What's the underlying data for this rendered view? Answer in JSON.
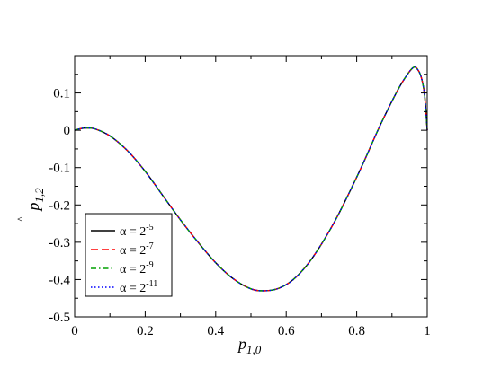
{
  "chart_data": {
    "type": "line",
    "title": "",
    "xlabel": "p",
    "xlabel_sub": "1,0",
    "ylabel": "p",
    "ylabel_sub": "1,2",
    "ylabel_hat": "^",
    "xlim": [
      0,
      1
    ],
    "ylim": [
      -0.5,
      0.2
    ],
    "xticks": [
      0,
      0.2,
      0.4,
      0.6,
      0.8,
      1
    ],
    "xtick_labels": [
      "0",
      "0.2",
      "0.4",
      "0.6",
      "0.8",
      "1"
    ],
    "yticks": [
      -0.5,
      -0.4,
      -0.3,
      -0.2,
      -0.1,
      0,
      0.1
    ],
    "ytick_labels": [
      "-0.5",
      "-0.4",
      "-0.3",
      "-0.2",
      "-0.1",
      "0",
      "0.1"
    ],
    "grid": false,
    "legend_position": "lower-left",
    "x": [
      0,
      0.02,
      0.04,
      0.06,
      0.1,
      0.15,
      0.2,
      0.25,
      0.3,
      0.35,
      0.4,
      0.45,
      0.5,
      0.54,
      0.58,
      0.62,
      0.66,
      0.7,
      0.74,
      0.78,
      0.82,
      0.86,
      0.9,
      0.93,
      0.96,
      0.975,
      0.985,
      0.993,
      1
    ],
    "series": [
      {
        "name": "α = 2",
        "exponent": "-5",
        "color": "#000000",
        "dash": "solid",
        "values": [
          0,
          0.005,
          0.006,
          0.003,
          -0.015,
          -0.055,
          -0.11,
          -0.175,
          -0.24,
          -0.3,
          -0.355,
          -0.398,
          -0.425,
          -0.43,
          -0.423,
          -0.4,
          -0.36,
          -0.305,
          -0.24,
          -0.165,
          -0.085,
          0.0,
          0.078,
          0.13,
          0.168,
          0.16,
          0.135,
          0.09,
          0.0
        ]
      },
      {
        "name": "α = 2",
        "exponent": "-7",
        "color": "#ff0000",
        "dash": "dashed",
        "values": [
          0,
          0.005,
          0.006,
          0.003,
          -0.015,
          -0.055,
          -0.11,
          -0.175,
          -0.24,
          -0.3,
          -0.355,
          -0.398,
          -0.425,
          -0.43,
          -0.423,
          -0.4,
          -0.36,
          -0.305,
          -0.24,
          -0.165,
          -0.085,
          0.0,
          0.078,
          0.13,
          0.168,
          0.16,
          0.135,
          0.09,
          0.0
        ]
      },
      {
        "name": "α = 2",
        "exponent": "-9",
        "color": "#00a000",
        "dash": "dash-dot",
        "values": [
          0,
          0.005,
          0.006,
          0.003,
          -0.015,
          -0.055,
          -0.11,
          -0.175,
          -0.24,
          -0.3,
          -0.355,
          -0.398,
          -0.425,
          -0.43,
          -0.423,
          -0.4,
          -0.36,
          -0.305,
          -0.24,
          -0.165,
          -0.085,
          0.0,
          0.078,
          0.13,
          0.168,
          0.16,
          0.135,
          0.09,
          0.0
        ]
      },
      {
        "name": "α = 2",
        "exponent": "-11",
        "color": "#0000ff",
        "dash": "dotted",
        "values": [
          0,
          0.005,
          0.006,
          0.003,
          -0.015,
          -0.055,
          -0.11,
          -0.175,
          -0.24,
          -0.3,
          -0.355,
          -0.398,
          -0.425,
          -0.43,
          -0.423,
          -0.4,
          -0.36,
          -0.305,
          -0.24,
          -0.165,
          -0.085,
          0.0,
          0.078,
          0.13,
          0.168,
          0.16,
          0.135,
          0.09,
          0.0
        ]
      }
    ]
  }
}
